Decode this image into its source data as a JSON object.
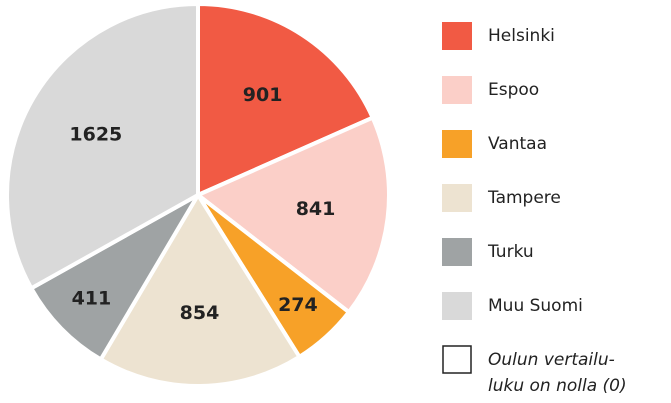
{
  "chart_data": {
    "type": "pie",
    "categories": [
      "Helsinki",
      "Espoo",
      "Vantaa",
      "Tampere",
      "Turku",
      "Muu Suomi"
    ],
    "values": [
      901,
      841,
      274,
      854,
      411,
      1625
    ],
    "colors": [
      "#f15a44",
      "#fbcfc8",
      "#f7a128",
      "#ede3d1",
      "#9fa3a4",
      "#d9d9d9"
    ],
    "annotation": [
      "Oulun vertailu-",
      "luku on nolla (0)"
    ]
  }
}
